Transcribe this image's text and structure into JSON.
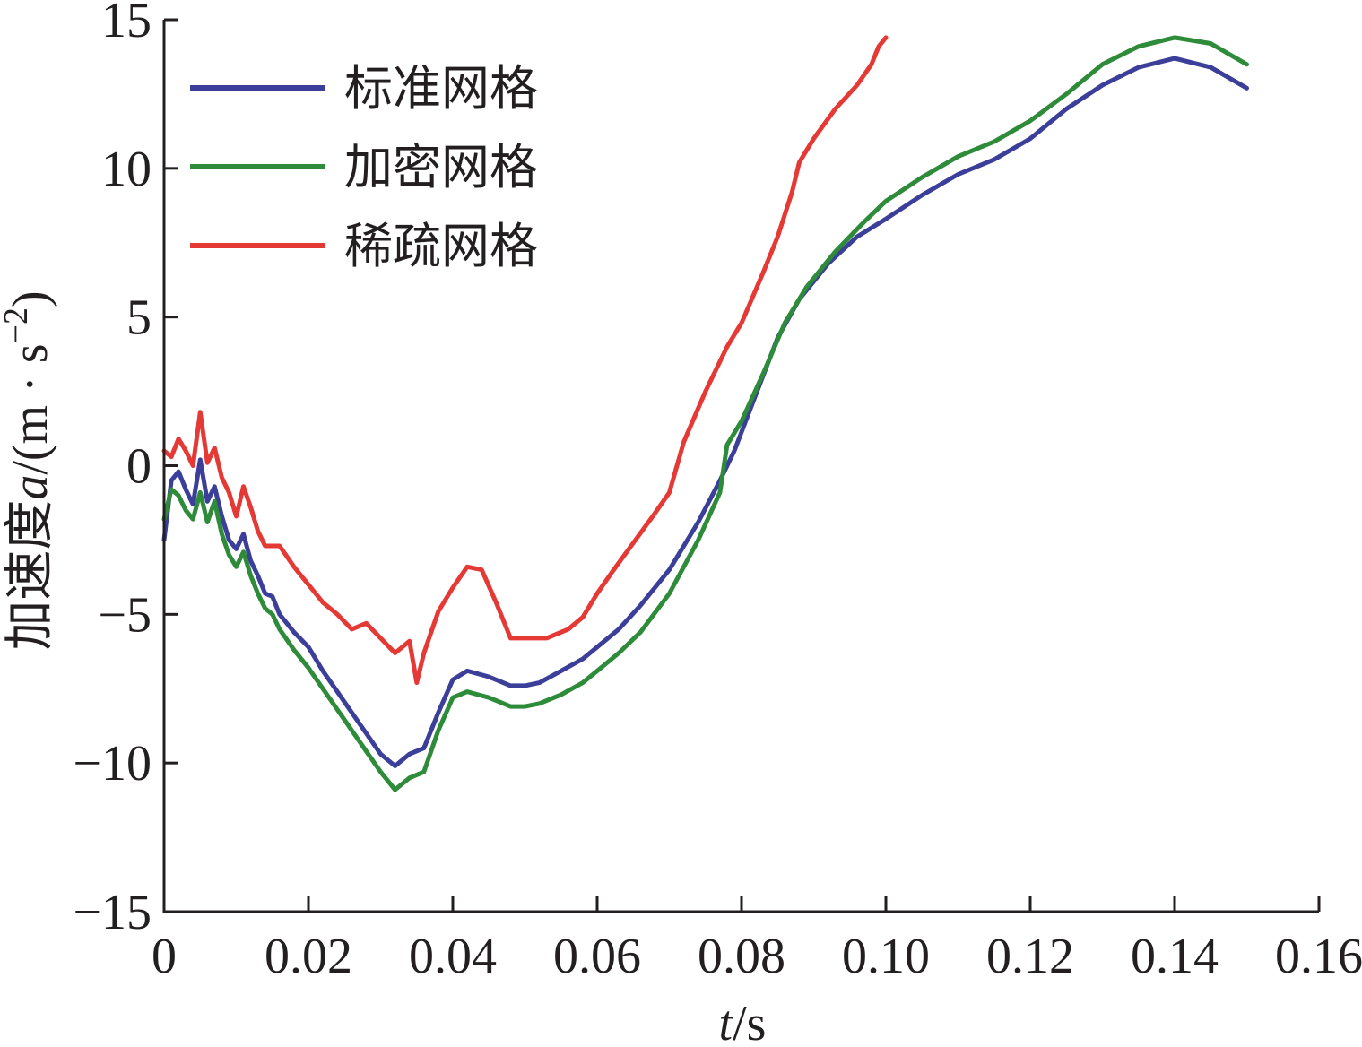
{
  "chart_data": {
    "type": "line",
    "xlabel": "t/s",
    "xlabel_parts": {
      "var": "t",
      "unit": "/s"
    },
    "ylabel": "加速度a/(m·s⁻²)",
    "ylabel_parts": {
      "prefix": "加速度",
      "var": "a",
      "unit_open": "/(m · s",
      "sup": "−2",
      "unit_close": ")"
    },
    "xlim": [
      0,
      0.16
    ],
    "ylim": [
      -15,
      15
    ],
    "x_ticks": [
      0,
      0.02,
      0.04,
      0.06,
      0.08,
      0.1,
      0.12,
      0.14,
      0.16
    ],
    "x_tick_labels": [
      "0",
      "0.02",
      "0.04",
      "0.06",
      "0.08",
      "0.10",
      "0.12",
      "0.14",
      "0.16"
    ],
    "y_ticks": [
      -15,
      -10,
      -5,
      0,
      5,
      10,
      15
    ],
    "y_tick_labels": [
      "−15",
      "−10",
      "−5",
      "0",
      "5",
      "10",
      "15"
    ],
    "grid": false,
    "legend_position": "top-left",
    "series": [
      {
        "name": "标准网格",
        "color": "#3b3f99",
        "points": [
          [
            0,
            -2.5
          ],
          [
            0.001,
            -0.5
          ],
          [
            0.002,
            -0.2
          ],
          [
            0.003,
            -0.8
          ],
          [
            0.004,
            -1.3
          ],
          [
            0.005,
            0.2
          ],
          [
            0.006,
            -1.2
          ],
          [
            0.007,
            -0.7
          ],
          [
            0.008,
            -1.7
          ],
          [
            0.009,
            -2.5
          ],
          [
            0.01,
            -2.8
          ],
          [
            0.011,
            -2.3
          ],
          [
            0.012,
            -3.2
          ],
          [
            0.013,
            -3.7
          ],
          [
            0.014,
            -4.3
          ],
          [
            0.015,
            -4.4
          ],
          [
            0.016,
            -5.0
          ],
          [
            0.018,
            -5.6
          ],
          [
            0.02,
            -6.1
          ],
          [
            0.022,
            -6.9
          ],
          [
            0.024,
            -7.6
          ],
          [
            0.026,
            -8.3
          ],
          [
            0.028,
            -9.0
          ],
          [
            0.03,
            -9.7
          ],
          [
            0.032,
            -10.1
          ],
          [
            0.034,
            -9.7
          ],
          [
            0.036,
            -9.5
          ],
          [
            0.038,
            -8.3
          ],
          [
            0.04,
            -7.2
          ],
          [
            0.042,
            -6.9
          ],
          [
            0.045,
            -7.1
          ],
          [
            0.048,
            -7.4
          ],
          [
            0.05,
            -7.4
          ],
          [
            0.052,
            -7.3
          ],
          [
            0.055,
            -6.9
          ],
          [
            0.058,
            -6.5
          ],
          [
            0.06,
            -6.1
          ],
          [
            0.063,
            -5.5
          ],
          [
            0.066,
            -4.7
          ],
          [
            0.07,
            -3.5
          ],
          [
            0.074,
            -1.9
          ],
          [
            0.077,
            -0.5
          ],
          [
            0.079,
            0.5
          ],
          [
            0.082,
            2.4
          ],
          [
            0.085,
            4.3
          ],
          [
            0.088,
            5.6
          ],
          [
            0.092,
            6.8
          ],
          [
            0.096,
            7.7
          ],
          [
            0.1,
            8.3
          ],
          [
            0.105,
            9.1
          ],
          [
            0.11,
            9.8
          ],
          [
            0.115,
            10.3
          ],
          [
            0.12,
            11.0
          ],
          [
            0.125,
            12.0
          ],
          [
            0.13,
            12.8
          ],
          [
            0.135,
            13.4
          ],
          [
            0.14,
            13.7
          ],
          [
            0.145,
            13.4
          ],
          [
            0.15,
            12.7
          ]
        ]
      },
      {
        "name": "加密网格",
        "color": "#2e8b3a",
        "points": [
          [
            0,
            -1.8
          ],
          [
            0.001,
            -0.8
          ],
          [
            0.002,
            -1.0
          ],
          [
            0.003,
            -1.5
          ],
          [
            0.004,
            -1.8
          ],
          [
            0.005,
            -0.9
          ],
          [
            0.006,
            -1.9
          ],
          [
            0.007,
            -1.2
          ],
          [
            0.008,
            -2.3
          ],
          [
            0.009,
            -3.0
          ],
          [
            0.01,
            -3.4
          ],
          [
            0.011,
            -2.9
          ],
          [
            0.012,
            -3.7
          ],
          [
            0.013,
            -4.3
          ],
          [
            0.014,
            -4.8
          ],
          [
            0.015,
            -5.0
          ],
          [
            0.016,
            -5.5
          ],
          [
            0.018,
            -6.2
          ],
          [
            0.02,
            -6.8
          ],
          [
            0.022,
            -7.5
          ],
          [
            0.024,
            -8.2
          ],
          [
            0.026,
            -8.9
          ],
          [
            0.028,
            -9.6
          ],
          [
            0.03,
            -10.3
          ],
          [
            0.032,
            -10.9
          ],
          [
            0.034,
            -10.5
          ],
          [
            0.036,
            -10.3
          ],
          [
            0.038,
            -8.9
          ],
          [
            0.04,
            -7.8
          ],
          [
            0.042,
            -7.6
          ],
          [
            0.045,
            -7.8
          ],
          [
            0.048,
            -8.1
          ],
          [
            0.05,
            -8.1
          ],
          [
            0.052,
            -8.0
          ],
          [
            0.055,
            -7.7
          ],
          [
            0.058,
            -7.3
          ],
          [
            0.06,
            -6.9
          ],
          [
            0.063,
            -6.3
          ],
          [
            0.066,
            -5.6
          ],
          [
            0.07,
            -4.3
          ],
          [
            0.074,
            -2.5
          ],
          [
            0.077,
            -0.9
          ],
          [
            0.078,
            0.7
          ],
          [
            0.08,
            1.5
          ],
          [
            0.083,
            3.1
          ],
          [
            0.086,
            4.8
          ],
          [
            0.089,
            6.0
          ],
          [
            0.093,
            7.2
          ],
          [
            0.097,
            8.2
          ],
          [
            0.1,
            8.9
          ],
          [
            0.105,
            9.7
          ],
          [
            0.11,
            10.4
          ],
          [
            0.115,
            10.9
          ],
          [
            0.12,
            11.6
          ],
          [
            0.125,
            12.5
          ],
          [
            0.13,
            13.5
          ],
          [
            0.135,
            14.1
          ],
          [
            0.14,
            14.4
          ],
          [
            0.145,
            14.2
          ],
          [
            0.15,
            13.5
          ]
        ]
      },
      {
        "name": "稀疏网格",
        "color": "#e53935",
        "points": [
          [
            0,
            0.5
          ],
          [
            0.001,
            0.3
          ],
          [
            0.002,
            0.9
          ],
          [
            0.003,
            0.5
          ],
          [
            0.004,
            0.0
          ],
          [
            0.005,
            1.8
          ],
          [
            0.006,
            0.1
          ],
          [
            0.007,
            0.6
          ],
          [
            0.008,
            -0.4
          ],
          [
            0.009,
            -0.9
          ],
          [
            0.01,
            -1.7
          ],
          [
            0.011,
            -0.7
          ],
          [
            0.012,
            -1.4
          ],
          [
            0.013,
            -2.2
          ],
          [
            0.014,
            -2.7
          ],
          [
            0.016,
            -2.7
          ],
          [
            0.018,
            -3.4
          ],
          [
            0.02,
            -4.0
          ],
          [
            0.022,
            -4.6
          ],
          [
            0.024,
            -5.0
          ],
          [
            0.026,
            -5.5
          ],
          [
            0.028,
            -5.3
          ],
          [
            0.03,
            -5.8
          ],
          [
            0.032,
            -6.3
          ],
          [
            0.034,
            -5.9
          ],
          [
            0.035,
            -7.3
          ],
          [
            0.036,
            -6.3
          ],
          [
            0.038,
            -4.9
          ],
          [
            0.04,
            -4.1
          ],
          [
            0.042,
            -3.4
          ],
          [
            0.044,
            -3.5
          ],
          [
            0.046,
            -4.6
          ],
          [
            0.048,
            -5.8
          ],
          [
            0.05,
            -5.8
          ],
          [
            0.053,
            -5.8
          ],
          [
            0.056,
            -5.5
          ],
          [
            0.058,
            -5.1
          ],
          [
            0.06,
            -4.3
          ],
          [
            0.062,
            -3.6
          ],
          [
            0.065,
            -2.6
          ],
          [
            0.068,
            -1.6
          ],
          [
            0.07,
            -0.9
          ],
          [
            0.072,
            0.8
          ],
          [
            0.075,
            2.5
          ],
          [
            0.078,
            4.0
          ],
          [
            0.08,
            4.8
          ],
          [
            0.083,
            6.5
          ],
          [
            0.085,
            7.7
          ],
          [
            0.087,
            9.2
          ],
          [
            0.088,
            10.2
          ],
          [
            0.09,
            11.0
          ],
          [
            0.093,
            12.0
          ],
          [
            0.096,
            12.8
          ],
          [
            0.098,
            13.5
          ],
          [
            0.099,
            14.1
          ],
          [
            0.1,
            14.4
          ]
        ]
      }
    ]
  }
}
